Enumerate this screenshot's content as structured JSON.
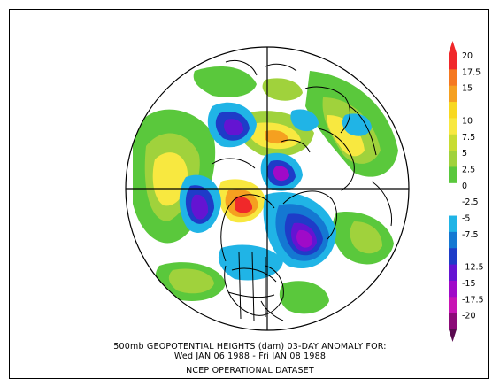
{
  "map": {
    "projection": "polar-stereographic-north",
    "field": "500mb geopotential height anomaly",
    "units": "dam"
  },
  "captions": {
    "line1": "500mb GEOPOTENTIAL HEIGHTS (dam)   03-DAY ANOMALY FOR:",
    "line2": "Wed JAN 06 1988 - Fri JAN 08 1988",
    "line3": "NCEP OPERATIONAL DATASET"
  },
  "colorbar": {
    "levels": [
      {
        "label": "20",
        "color": "#f0282a"
      },
      {
        "label": "17.5",
        "color": "#f57820"
      },
      {
        "label": "15",
        "color": "#f5a020"
      },
      {
        "label": "12.5",
        "color": "#f8d820"
      },
      {
        "label": "10",
        "color": "#f8e840"
      },
      {
        "label": "7.5",
        "color": "#c8dc32"
      },
      {
        "label": "5",
        "color": "#a0d23c"
      },
      {
        "label": "2.5",
        "color": "#5ac83c"
      },
      {
        "label": "0",
        "color": "#ffffff"
      },
      {
        "label": "-2.5",
        "color": "#ffffff"
      },
      {
        "label": "-5",
        "color": "#20b4e6"
      },
      {
        "label": "-7.5",
        "color": "#1478d2"
      },
      {
        "label": "-10",
        "color": "#1e3cc8"
      },
      {
        "label": "-12.5",
        "color": "#6414d2"
      },
      {
        "label": "-15",
        "color": "#a00ac8"
      },
      {
        "label": "-17.5",
        "color": "#c814b4"
      },
      {
        "label": "-20",
        "color": "#8c0a78"
      }
    ],
    "tick_labels": [
      "20",
      "17.5",
      "15",
      "10",
      "7.5",
      "5",
      "2.5",
      "0",
      "-2.5",
      "-5",
      "-7.5",
      "-12.5",
      "-15",
      "-17.5",
      "-20"
    ],
    "top_arrow_color": "#f0282a",
    "bottom_arrow_color": "#5a0a50"
  }
}
